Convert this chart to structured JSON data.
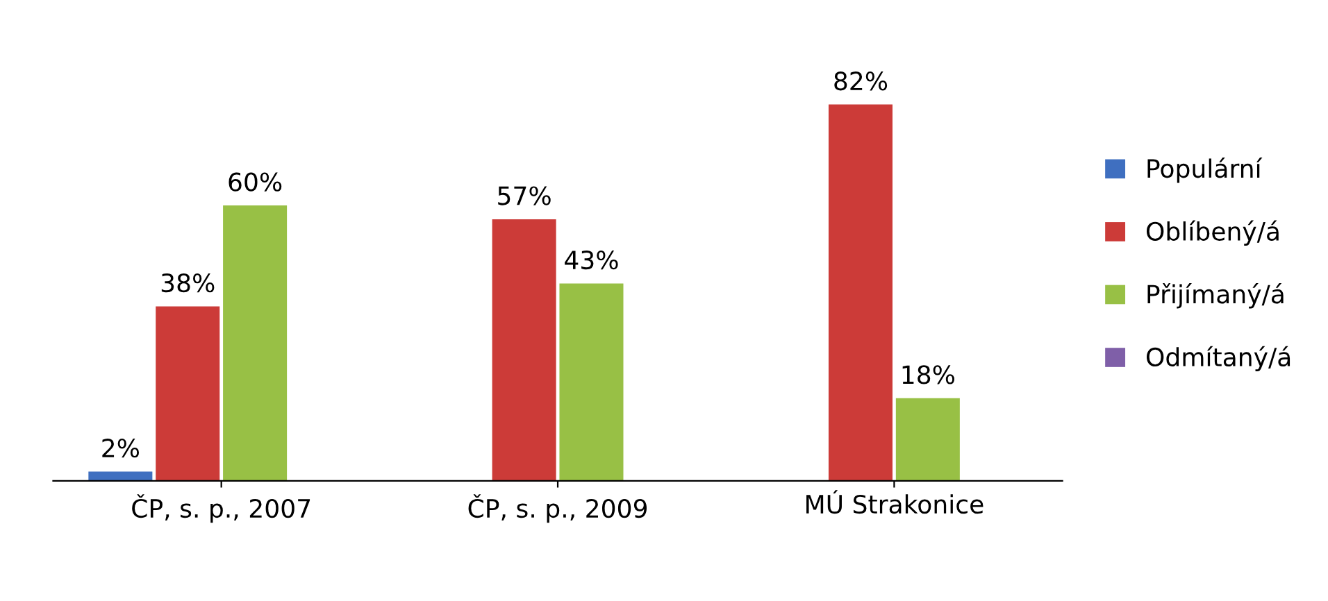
{
  "chart_data": {
    "type": "bar",
    "categories": [
      "ČP, s. p., 2007",
      "ČP, s. p., 2009",
      "MÚ Strakonice"
    ],
    "series": [
      {
        "name": "Populární",
        "color": "#3f6fc0",
        "values": [
          2,
          null,
          null
        ],
        "value_labels": [
          "2%",
          null,
          null
        ]
      },
      {
        "name": "Oblíbený/á",
        "color": "#cc3b38",
        "values": [
          38,
          57,
          82
        ],
        "value_labels": [
          "38%",
          "57%",
          "82%"
        ]
      },
      {
        "name": "Přijímaný/á",
        "color": "#98c045",
        "values": [
          60,
          43,
          18
        ],
        "value_labels": [
          "60%",
          "43%",
          "18%"
        ]
      },
      {
        "name": "Odmítaný/á",
        "color": "#7f5fa8",
        "values": [
          null,
          null,
          null
        ],
        "value_labels": [
          null,
          null,
          null
        ]
      }
    ],
    "legend": "right",
    "grid": false
  }
}
